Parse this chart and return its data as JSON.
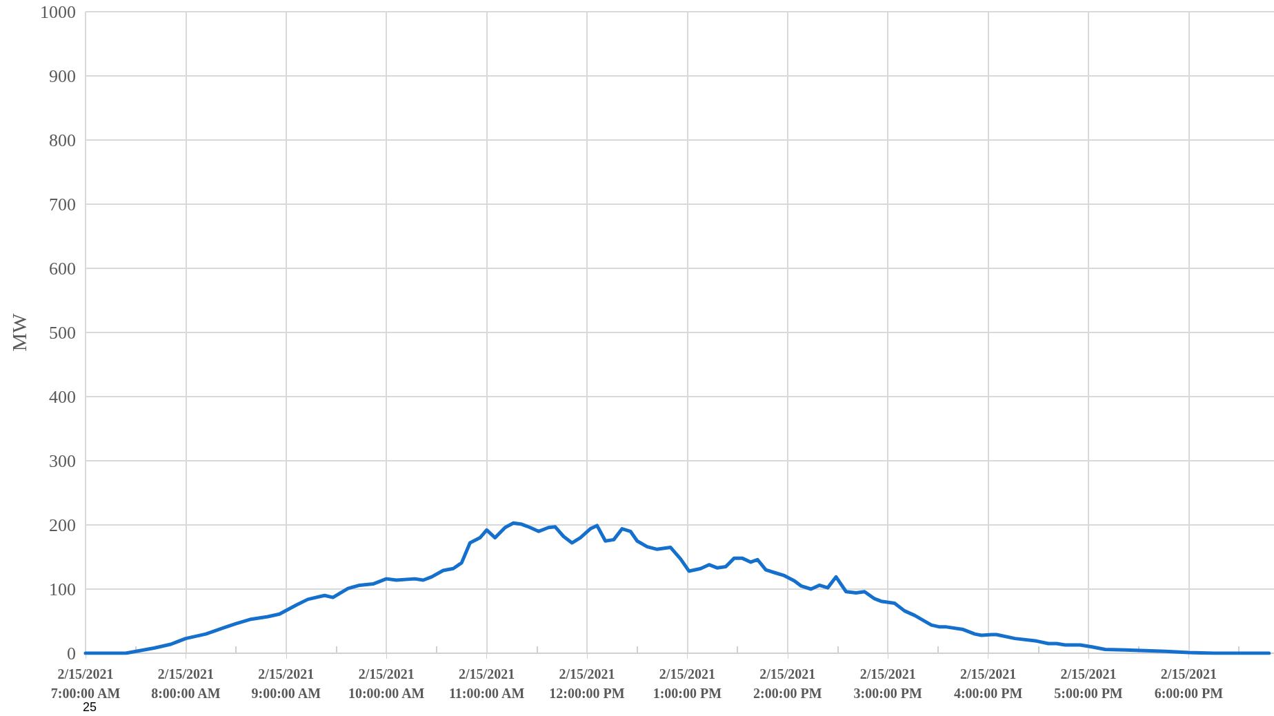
{
  "chart_data": {
    "type": "line",
    "ylabel": "MW",
    "x": [
      "2021-02-15T07:00",
      "2021-02-15T07:24",
      "2021-02-15T07:41",
      "2021-02-15T07:51",
      "2021-02-15T08:00",
      "2021-02-15T08:12",
      "2021-02-15T08:22",
      "2021-02-15T08:30",
      "2021-02-15T08:39",
      "2021-02-15T08:49",
      "2021-02-15T08:56",
      "2021-02-15T09:06",
      "2021-02-15T09:13",
      "2021-02-15T09:23",
      "2021-02-15T09:28",
      "2021-02-15T09:37",
      "2021-02-15T09:44",
      "2021-02-15T09:52",
      "2021-02-15T10:00",
      "2021-02-15T10:06",
      "2021-02-15T10:17",
      "2021-02-15T10:22",
      "2021-02-15T10:27",
      "2021-02-15T10:34",
      "2021-02-15T10:40",
      "2021-02-15T10:45",
      "2021-02-15T10:50",
      "2021-02-15T10:56",
      "2021-02-15T11:00",
      "2021-02-15T11:05",
      "2021-02-15T11:11",
      "2021-02-15T11:16",
      "2021-02-15T11:21",
      "2021-02-15T11:26",
      "2021-02-15T11:31",
      "2021-02-15T11:37",
      "2021-02-15T11:41",
      "2021-02-15T11:46",
      "2021-02-15T11:51",
      "2021-02-15T11:56",
      "2021-02-15T12:02",
      "2021-02-15T12:06",
      "2021-02-15T12:11",
      "2021-02-15T12:16",
      "2021-02-15T12:21",
      "2021-02-15T12:26",
      "2021-02-15T12:30",
      "2021-02-15T12:36",
      "2021-02-15T12:42",
      "2021-02-15T12:50",
      "2021-02-15T12:56",
      "2021-02-15T13:01",
      "2021-02-15T13:08",
      "2021-02-15T13:13",
      "2021-02-15T13:18",
      "2021-02-15T13:23",
      "2021-02-15T13:28",
      "2021-02-15T13:33",
      "2021-02-15T13:38",
      "2021-02-15T13:42",
      "2021-02-15T13:47",
      "2021-02-15T13:53",
      "2021-02-15T13:58",
      "2021-02-15T14:04",
      "2021-02-15T14:08",
      "2021-02-15T14:14",
      "2021-02-15T14:19",
      "2021-02-15T14:24",
      "2021-02-15T14:29",
      "2021-02-15T14:35",
      "2021-02-15T14:41",
      "2021-02-15T14:46",
      "2021-02-15T14:52",
      "2021-02-15T14:56",
      "2021-02-15T15:04",
      "2021-02-15T15:10",
      "2021-02-15T15:16",
      "2021-02-15T15:26",
      "2021-02-15T15:31",
      "2021-02-15T15:35",
      "2021-02-15T15:45",
      "2021-02-15T15:52",
      "2021-02-15T15:56",
      "2021-02-15T16:02",
      "2021-02-15T16:05",
      "2021-02-15T16:16",
      "2021-02-15T16:29",
      "2021-02-15T16:36",
      "2021-02-15T16:41",
      "2021-02-15T16:46",
      "2021-02-15T16:55",
      "2021-02-15T17:02",
      "2021-02-15T17:10",
      "2021-02-15T17:22",
      "2021-02-15T17:34",
      "2021-02-15T17:46",
      "2021-02-15T18:00",
      "2021-02-15T18:15",
      "2021-02-15T18:48"
    ],
    "series": [
      {
        "color": "#1470cc",
        "values": [
          0,
          0,
          8,
          14,
          23,
          30,
          39,
          46,
          53,
          57,
          61,
          75,
          84,
          90,
          87,
          101,
          106,
          108,
          116,
          114,
          116,
          114,
          119,
          129,
          132,
          141,
          172,
          180,
          192,
          180,
          196,
          203,
          201,
          196,
          190,
          196,
          197,
          182,
          172,
          180,
          194,
          199,
          175,
          177,
          194,
          190,
          175,
          166,
          162,
          165,
          147,
          128,
          132,
          138,
          133,
          135,
          148,
          148,
          142,
          146,
          130,
          125,
          121,
          113,
          105,
          100,
          106,
          102,
          119,
          96,
          94,
          96,
          85,
          81,
          78,
          66,
          59,
          44,
          41,
          41,
          37,
          30,
          28,
          29,
          29,
          23,
          19,
          15,
          15,
          13,
          13,
          10,
          6,
          5,
          4,
          3,
          1,
          0,
          0
        ]
      }
    ],
    "xlim": [
      "2021-02-15T07:00",
      "2021-02-15T18:51"
    ],
    "xticks": [
      {
        "value": "2021-02-15T07:00",
        "label": "2/15/2021\n7:00:00 AM"
      },
      {
        "value": "2021-02-15T07:30",
        "label": null
      },
      {
        "value": "2021-02-15T08:00",
        "label": "2/15/2021\n8:00:00 AM"
      },
      {
        "value": "2021-02-15T08:30",
        "label": null
      },
      {
        "value": "2021-02-15T09:00",
        "label": "2/15/2021\n9:00:00 AM"
      },
      {
        "value": "2021-02-15T09:30",
        "label": null
      },
      {
        "value": "2021-02-15T10:00",
        "label": "2/15/2021\n10:00:00 AM"
      },
      {
        "value": "2021-02-15T10:30",
        "label": null
      },
      {
        "value": "2021-02-15T11:00",
        "label": "2/15/2021\n11:00:00 AM"
      },
      {
        "value": "2021-02-15T11:30",
        "label": null
      },
      {
        "value": "2021-02-15T12:00",
        "label": "2/15/2021\n12:00:00 PM"
      },
      {
        "value": "2021-02-15T12:30",
        "label": null
      },
      {
        "value": "2021-02-15T13:00",
        "label": "2/15/2021\n1:00:00 PM"
      },
      {
        "value": "2021-02-15T13:30",
        "label": null
      },
      {
        "value": "2021-02-15T14:00",
        "label": "2/15/2021\n2:00:00 PM"
      },
      {
        "value": "2021-02-15T14:30",
        "label": null
      },
      {
        "value": "2021-02-15T15:00",
        "label": "2/15/2021\n3:00:00 PM"
      },
      {
        "value": "2021-02-15T15:30",
        "label": null
      },
      {
        "value": "2021-02-15T16:00",
        "label": "2/15/2021\n4:00:00 PM"
      },
      {
        "value": "2021-02-15T16:30",
        "label": null
      },
      {
        "value": "2021-02-15T17:00",
        "label": "2/15/2021\n5:00:00 PM"
      },
      {
        "value": "2021-02-15T17:30",
        "label": null
      },
      {
        "value": "2021-02-15T18:00",
        "label": "2/15/2021\n6:00:00 PM"
      },
      {
        "value": "2021-02-15T18:30",
        "label": null
      }
    ],
    "ylim": [
      0,
      1000
    ],
    "yticks": [
      0,
      100,
      200,
      300,
      400,
      500,
      600,
      700,
      800,
      900,
      1000
    ],
    "grid": true,
    "marker": "none",
    "line_style": "solid",
    "annotations": [
      "25"
    ]
  }
}
